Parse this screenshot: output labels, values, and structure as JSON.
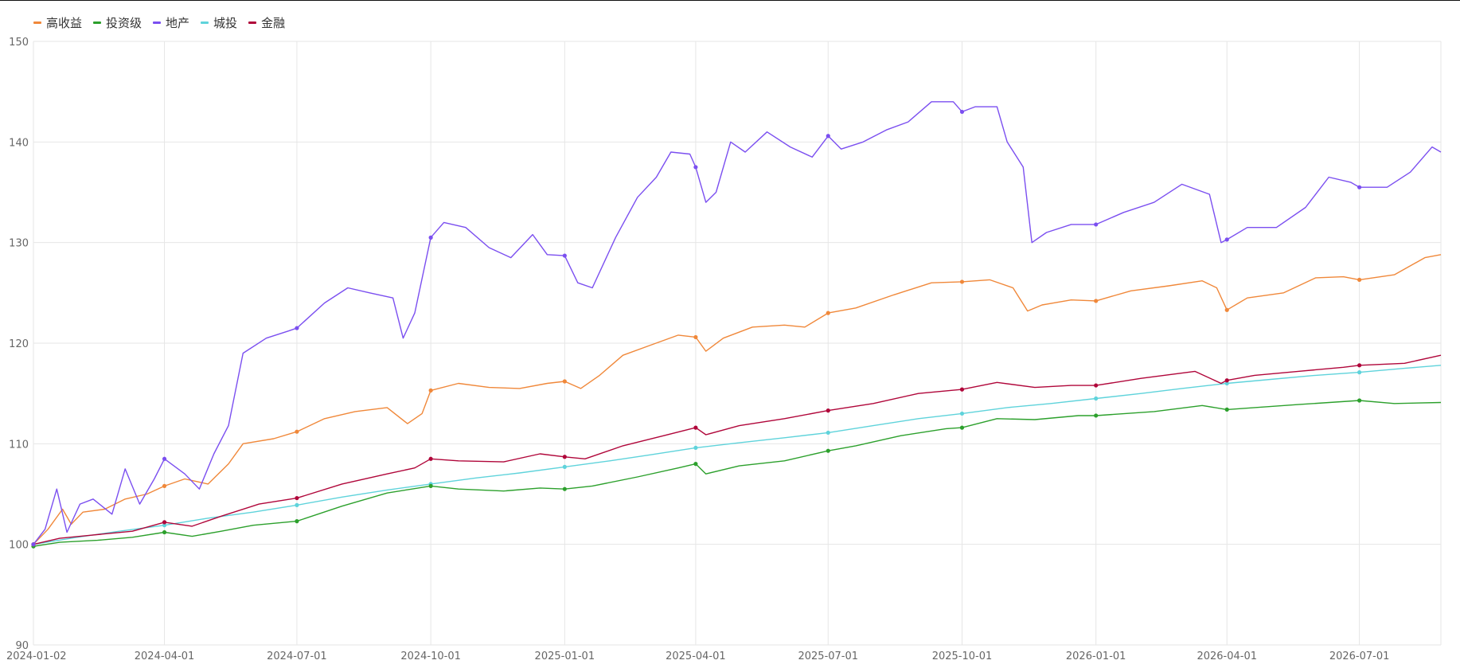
{
  "chart_data": {
    "type": "line",
    "title": "",
    "xlabel": "",
    "ylabel": "",
    "ylim": [
      90,
      150
    ],
    "y_ticks": [
      90,
      100,
      110,
      120,
      130,
      140,
      150
    ],
    "x_ticks": [
      "2024-01-02",
      "2024-04-01",
      "2024-07-01",
      "2024-10-01",
      "2025-01-01",
      "2025-04-01",
      "2025-07-01",
      "2025-10-01",
      "2026-01-01",
      "2026-04-01",
      "2026-07-01"
    ],
    "x_range": [
      "2024-01-02",
      "2026-08-26"
    ],
    "grid": true,
    "legend_position": "top-left",
    "series": [
      {
        "name": "高收益",
        "color": "#f0883a",
        "values": [
          [
            "2024-01-02",
            100.0
          ],
          [
            "2024-01-12",
            101.5
          ],
          [
            "2024-01-22",
            103.5
          ],
          [
            "2024-01-28",
            102.0
          ],
          [
            "2024-02-05",
            103.2
          ],
          [
            "2024-02-20",
            103.5
          ],
          [
            "2024-03-05",
            104.5
          ],
          [
            "2024-03-20",
            105.0
          ],
          [
            "2024-04-01",
            105.8
          ],
          [
            "2024-04-15",
            106.5
          ],
          [
            "2024-05-01",
            106.0
          ],
          [
            "2024-05-15",
            108.0
          ],
          [
            "2024-05-25",
            110.0
          ],
          [
            "2024-06-15",
            110.5
          ],
          [
            "2024-07-01",
            111.2
          ],
          [
            "2024-07-20",
            112.5
          ],
          [
            "2024-08-10",
            113.2
          ],
          [
            "2024-09-01",
            113.6
          ],
          [
            "2024-09-15",
            112.0
          ],
          [
            "2024-09-25",
            113.0
          ],
          [
            "2024-10-01",
            115.3
          ],
          [
            "2024-10-20",
            116.0
          ],
          [
            "2024-11-10",
            115.6
          ],
          [
            "2024-12-01",
            115.5
          ],
          [
            "2024-12-20",
            116.0
          ],
          [
            "2025-01-01",
            116.2
          ],
          [
            "2025-01-12",
            115.5
          ],
          [
            "2025-01-25",
            116.8
          ],
          [
            "2025-02-10",
            118.8
          ],
          [
            "2025-03-01",
            119.8
          ],
          [
            "2025-03-20",
            120.8
          ],
          [
            "2025-04-01",
            120.6
          ],
          [
            "2025-04-08",
            119.2
          ],
          [
            "2025-04-20",
            120.5
          ],
          [
            "2025-05-10",
            121.6
          ],
          [
            "2025-06-01",
            121.8
          ],
          [
            "2025-06-15",
            121.6
          ],
          [
            "2025-07-01",
            123.0
          ],
          [
            "2025-07-20",
            123.5
          ],
          [
            "2025-08-15",
            124.8
          ],
          [
            "2025-09-10",
            126.0
          ],
          [
            "2025-10-01",
            126.1
          ],
          [
            "2025-10-20",
            126.3
          ],
          [
            "2025-11-05",
            125.5
          ],
          [
            "2025-11-15",
            123.2
          ],
          [
            "2025-11-25",
            123.8
          ],
          [
            "2025-12-15",
            124.3
          ],
          [
            "2026-01-01",
            124.2
          ],
          [
            "2026-01-25",
            125.2
          ],
          [
            "2026-02-20",
            125.7
          ],
          [
            "2026-03-15",
            126.2
          ],
          [
            "2026-03-25",
            125.5
          ],
          [
            "2026-04-01",
            123.3
          ],
          [
            "2026-04-15",
            124.5
          ],
          [
            "2026-05-10",
            125.0
          ],
          [
            "2026-06-01",
            126.5
          ],
          [
            "2026-06-20",
            126.6
          ],
          [
            "2026-07-01",
            126.3
          ],
          [
            "2026-07-25",
            126.8
          ],
          [
            "2026-08-15",
            128.5
          ],
          [
            "2026-08-26",
            128.8
          ]
        ]
      },
      {
        "name": "投资级",
        "color": "#2ca02c",
        "values": [
          [
            "2024-01-02",
            99.8
          ],
          [
            "2024-01-20",
            100.2
          ],
          [
            "2024-02-15",
            100.4
          ],
          [
            "2024-03-10",
            100.7
          ],
          [
            "2024-04-01",
            101.2
          ],
          [
            "2024-04-20",
            100.8
          ],
          [
            "2024-05-10",
            101.3
          ],
          [
            "2024-06-01",
            101.9
          ],
          [
            "2024-07-01",
            102.3
          ],
          [
            "2024-08-01",
            103.8
          ],
          [
            "2024-09-01",
            105.1
          ],
          [
            "2024-10-01",
            105.8
          ],
          [
            "2024-10-20",
            105.5
          ],
          [
            "2024-11-20",
            105.3
          ],
          [
            "2024-12-15",
            105.6
          ],
          [
            "2025-01-01",
            105.5
          ],
          [
            "2025-01-20",
            105.8
          ],
          [
            "2025-02-20",
            106.7
          ],
          [
            "2025-03-20",
            107.6
          ],
          [
            "2025-04-01",
            108.0
          ],
          [
            "2025-04-08",
            107.0
          ],
          [
            "2025-05-01",
            107.8
          ],
          [
            "2025-06-01",
            108.3
          ],
          [
            "2025-07-01",
            109.3
          ],
          [
            "2025-07-20",
            109.8
          ],
          [
            "2025-08-20",
            110.8
          ],
          [
            "2025-09-20",
            111.5
          ],
          [
            "2025-10-01",
            111.6
          ],
          [
            "2025-10-25",
            112.5
          ],
          [
            "2025-11-20",
            112.4
          ],
          [
            "2025-12-20",
            112.8
          ],
          [
            "2026-01-01",
            112.8
          ],
          [
            "2026-02-10",
            113.2
          ],
          [
            "2026-03-15",
            113.8
          ],
          [
            "2026-04-01",
            113.4
          ],
          [
            "2026-04-20",
            113.6
          ],
          [
            "2026-05-20",
            113.9
          ],
          [
            "2026-07-01",
            114.3
          ],
          [
            "2026-07-25",
            114.0
          ],
          [
            "2026-08-26",
            114.1
          ]
        ]
      },
      {
        "name": "地产",
        "color": "#7b4ff0",
        "values": [
          [
            "2024-01-02",
            100.0
          ],
          [
            "2024-01-10",
            101.5
          ],
          [
            "2024-01-18",
            105.5
          ],
          [
            "2024-01-25",
            101.2
          ],
          [
            "2024-02-03",
            104.0
          ],
          [
            "2024-02-12",
            104.5
          ],
          [
            "2024-02-25",
            103.0
          ],
          [
            "2024-03-05",
            107.5
          ],
          [
            "2024-03-15",
            104.0
          ],
          [
            "2024-03-25",
            106.5
          ],
          [
            "2024-04-01",
            108.5
          ],
          [
            "2024-04-15",
            107.0
          ],
          [
            "2024-04-25",
            105.5
          ],
          [
            "2024-05-05",
            109.0
          ],
          [
            "2024-05-15",
            111.8
          ],
          [
            "2024-05-25",
            119.0
          ],
          [
            "2024-06-10",
            120.5
          ],
          [
            "2024-06-25",
            121.2
          ],
          [
            "2024-07-01",
            121.5
          ],
          [
            "2024-07-20",
            124.0
          ],
          [
            "2024-08-05",
            125.5
          ],
          [
            "2024-08-20",
            125.0
          ],
          [
            "2024-09-05",
            124.5
          ],
          [
            "2024-09-12",
            120.5
          ],
          [
            "2024-09-20",
            123.0
          ],
          [
            "2024-10-01",
            130.5
          ],
          [
            "2024-10-10",
            132.0
          ],
          [
            "2024-10-25",
            131.5
          ],
          [
            "2024-11-10",
            129.5
          ],
          [
            "2024-11-25",
            128.5
          ],
          [
            "2024-12-10",
            130.8
          ],
          [
            "2024-12-20",
            128.8
          ],
          [
            "2025-01-01",
            128.7
          ],
          [
            "2025-01-10",
            126.0
          ],
          [
            "2025-01-20",
            125.5
          ],
          [
            "2025-02-05",
            130.5
          ],
          [
            "2025-02-20",
            134.5
          ],
          [
            "2025-03-05",
            136.5
          ],
          [
            "2025-03-15",
            139.0
          ],
          [
            "2025-03-28",
            138.8
          ],
          [
            "2025-04-01",
            137.5
          ],
          [
            "2025-04-08",
            134.0
          ],
          [
            "2025-04-15",
            135.0
          ],
          [
            "2025-04-25",
            140.0
          ],
          [
            "2025-05-05",
            139.0
          ],
          [
            "2025-05-20",
            141.0
          ],
          [
            "2025-06-05",
            139.5
          ],
          [
            "2025-06-20",
            138.5
          ],
          [
            "2025-07-01",
            140.6
          ],
          [
            "2025-07-10",
            139.3
          ],
          [
            "2025-07-25",
            140.0
          ],
          [
            "2025-08-10",
            141.2
          ],
          [
            "2025-08-25",
            142.0
          ],
          [
            "2025-09-10",
            144.0
          ],
          [
            "2025-09-25",
            144.0
          ],
          [
            "2025-10-01",
            143.0
          ],
          [
            "2025-10-10",
            143.5
          ],
          [
            "2025-10-25",
            143.5
          ],
          [
            "2025-11-01",
            140.0
          ],
          [
            "2025-11-12",
            137.5
          ],
          [
            "2025-11-18",
            130.0
          ],
          [
            "2025-11-28",
            131.0
          ],
          [
            "2025-12-15",
            131.8
          ],
          [
            "2026-01-01",
            131.8
          ],
          [
            "2026-01-20",
            133.0
          ],
          [
            "2026-02-10",
            134.0
          ],
          [
            "2026-03-01",
            135.8
          ],
          [
            "2026-03-20",
            134.8
          ],
          [
            "2026-03-28",
            130.0
          ],
          [
            "2026-04-01",
            130.3
          ],
          [
            "2026-04-15",
            131.5
          ],
          [
            "2026-05-05",
            131.5
          ],
          [
            "2026-05-25",
            133.5
          ],
          [
            "2026-06-10",
            136.5
          ],
          [
            "2026-06-25",
            136.0
          ],
          [
            "2026-07-01",
            135.5
          ],
          [
            "2026-07-20",
            135.5
          ],
          [
            "2026-08-05",
            137.0
          ],
          [
            "2026-08-20",
            139.5
          ],
          [
            "2026-08-26",
            139.0
          ]
        ]
      },
      {
        "name": "城投",
        "color": "#5fd3db",
        "values": [
          [
            "2024-01-02",
            100.0
          ],
          [
            "2024-02-01",
            100.7
          ],
          [
            "2024-03-01",
            101.3
          ],
          [
            "2024-04-01",
            101.9
          ],
          [
            "2024-05-01",
            102.6
          ],
          [
            "2024-06-01",
            103.2
          ],
          [
            "2024-07-01",
            103.9
          ],
          [
            "2024-08-01",
            104.7
          ],
          [
            "2024-09-01",
            105.4
          ],
          [
            "2024-10-01",
            106.0
          ],
          [
            "2024-11-01",
            106.6
          ],
          [
            "2024-12-01",
            107.1
          ],
          [
            "2025-01-01",
            107.7
          ],
          [
            "2025-02-01",
            108.3
          ],
          [
            "2025-03-01",
            108.9
          ],
          [
            "2025-04-01",
            109.6
          ],
          [
            "2025-05-01",
            110.1
          ],
          [
            "2025-06-01",
            110.6
          ],
          [
            "2025-07-01",
            111.1
          ],
          [
            "2025-08-01",
            111.8
          ],
          [
            "2025-09-01",
            112.5
          ],
          [
            "2025-10-01",
            113.0
          ],
          [
            "2025-11-01",
            113.6
          ],
          [
            "2025-12-01",
            114.0
          ],
          [
            "2026-01-01",
            114.5
          ],
          [
            "2026-02-01",
            115.0
          ],
          [
            "2026-03-01",
            115.5
          ],
          [
            "2026-04-01",
            116.0
          ],
          [
            "2026-05-01",
            116.4
          ],
          [
            "2026-06-01",
            116.8
          ],
          [
            "2026-07-01",
            117.1
          ],
          [
            "2026-08-01",
            117.5
          ],
          [
            "2026-08-26",
            117.8
          ]
        ]
      },
      {
        "name": "金融",
        "color": "#b0063a",
        "values": [
          [
            "2024-01-02",
            100.0
          ],
          [
            "2024-01-20",
            100.6
          ],
          [
            "2024-02-10",
            100.9
          ],
          [
            "2024-03-10",
            101.3
          ],
          [
            "2024-04-01",
            102.2
          ],
          [
            "2024-04-20",
            101.8
          ],
          [
            "2024-05-10",
            102.8
          ],
          [
            "2024-06-05",
            104.0
          ],
          [
            "2024-07-01",
            104.6
          ],
          [
            "2024-08-01",
            106.0
          ],
          [
            "2024-09-01",
            107.0
          ],
          [
            "2024-09-20",
            107.6
          ],
          [
            "2024-10-01",
            108.5
          ],
          [
            "2024-10-20",
            108.3
          ],
          [
            "2024-11-20",
            108.2
          ],
          [
            "2024-12-15",
            109.0
          ],
          [
            "2025-01-01",
            108.7
          ],
          [
            "2025-01-15",
            108.5
          ],
          [
            "2025-02-10",
            109.8
          ],
          [
            "2025-03-10",
            110.8
          ],
          [
            "2025-04-01",
            111.6
          ],
          [
            "2025-04-08",
            110.9
          ],
          [
            "2025-05-01",
            111.8
          ],
          [
            "2025-06-01",
            112.5
          ],
          [
            "2025-07-01",
            113.3
          ],
          [
            "2025-08-01",
            114.0
          ],
          [
            "2025-09-01",
            115.0
          ],
          [
            "2025-10-01",
            115.4
          ],
          [
            "2025-10-25",
            116.1
          ],
          [
            "2025-11-20",
            115.6
          ],
          [
            "2025-12-15",
            115.8
          ],
          [
            "2026-01-01",
            115.8
          ],
          [
            "2026-02-01",
            116.5
          ],
          [
            "2026-03-10",
            117.2
          ],
          [
            "2026-03-28",
            116.0
          ],
          [
            "2026-04-01",
            116.3
          ],
          [
            "2026-04-20",
            116.8
          ],
          [
            "2026-05-20",
            117.2
          ],
          [
            "2026-06-20",
            117.6
          ],
          [
            "2026-07-01",
            117.8
          ],
          [
            "2026-08-01",
            118.0
          ],
          [
            "2026-08-26",
            118.8
          ]
        ]
      }
    ]
  }
}
